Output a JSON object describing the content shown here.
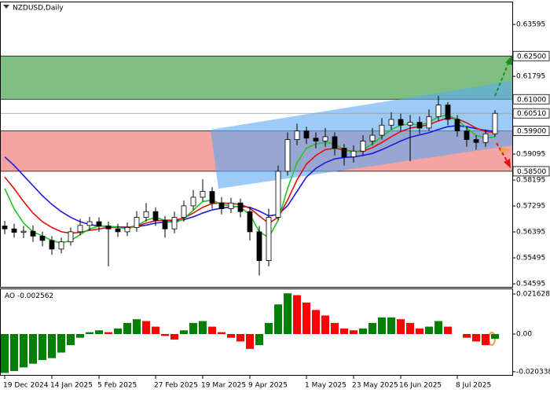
{
  "chart_data": {
    "type": "candlestick",
    "title": "NZDUSD,Daily",
    "categories": [
      "19 Dec 2024",
      null,
      null,
      null,
      null,
      "14 Jan 2025",
      null,
      null,
      null,
      null,
      "5 Feb 2025",
      null,
      null,
      null,
      null,
      null,
      "27 Feb 2025",
      null,
      null,
      null,
      null,
      "19 Mar 2025",
      null,
      null,
      null,
      null,
      "9 Apr 2025",
      null,
      null,
      null,
      null,
      null,
      "1 May 2025",
      null,
      null,
      null,
      null,
      "23 May 2025",
      null,
      null,
      null,
      null,
      "16 Jun 2025",
      null,
      null,
      null,
      null,
      null,
      "8 Jul 2025",
      null,
      null,
      null,
      null
    ],
    "open": [
      0.566,
      0.565,
      0.5638,
      0.5642,
      0.5625,
      0.561,
      0.558,
      0.5605,
      0.564,
      0.5662,
      0.5675,
      0.566,
      0.565,
      0.564,
      0.5655,
      0.569,
      0.571,
      0.568,
      0.565,
      0.569,
      0.573,
      0.576,
      0.578,
      0.574,
      0.572,
      0.574,
      0.571,
      0.564,
      0.554,
      0.569,
      0.585,
      0.596,
      0.599,
      0.5965,
      0.5955,
      0.597,
      0.593,
      0.59,
      0.592,
      0.5955,
      0.5975,
      0.601,
      0.603,
      0.601,
      0.602,
      0.6,
      0.604,
      0.608,
      0.603,
      0.599,
      0.596,
      0.595,
      0.598
    ],
    "high": [
      0.5678,
      0.5668,
      0.566,
      0.5662,
      0.564,
      0.5625,
      0.562,
      0.5655,
      0.5685,
      0.5692,
      0.569,
      0.5675,
      0.5668,
      0.5672,
      0.5712,
      0.574,
      0.5725,
      0.5695,
      0.571,
      0.5748,
      0.5785,
      0.5822,
      0.5795,
      0.576,
      0.5758,
      0.5755,
      0.5725,
      0.566,
      0.572,
      0.587,
      0.5985,
      0.6015,
      0.6005,
      0.5985,
      0.6,
      0.5985,
      0.5945,
      0.594,
      0.5975,
      0.6,
      0.6035,
      0.6055,
      0.605,
      0.6045,
      0.604,
      0.6065,
      0.6112,
      0.609,
      0.6045,
      0.6005,
      0.5975,
      0.5995,
      0.6062
    ],
    "low": [
      0.5632,
      0.562,
      0.5618,
      0.5605,
      0.559,
      0.556,
      0.5565,
      0.5592,
      0.5628,
      0.5645,
      0.564,
      0.552,
      0.5622,
      0.5625,
      0.564,
      0.5675,
      0.566,
      0.562,
      0.5635,
      0.5675,
      0.5715,
      0.5745,
      0.572,
      0.57,
      0.5705,
      0.569,
      0.561,
      0.5488,
      0.552,
      0.568,
      0.5835,
      0.594,
      0.5945,
      0.593,
      0.5935,
      0.5905,
      0.587,
      0.588,
      0.5905,
      0.594,
      0.596,
      0.5995,
      0.599,
      0.5885,
      0.598,
      0.599,
      0.6025,
      0.601,
      0.597,
      0.5935,
      0.5925,
      0.5935,
      0.597
    ],
    "close": [
      0.565,
      0.5638,
      0.5642,
      0.5625,
      0.561,
      0.558,
      0.5605,
      0.564,
      0.5662,
      0.5675,
      0.566,
      0.565,
      0.564,
      0.5655,
      0.569,
      0.571,
      0.568,
      0.565,
      0.569,
      0.573,
      0.576,
      0.578,
      0.574,
      0.572,
      0.574,
      0.571,
      0.564,
      0.554,
      0.569,
      0.585,
      0.596,
      0.599,
      0.5965,
      0.5955,
      0.597,
      0.593,
      0.59,
      0.592,
      0.5955,
      0.5975,
      0.601,
      0.603,
      0.601,
      0.602,
      0.6,
      0.604,
      0.608,
      0.603,
      0.599,
      0.596,
      0.595,
      0.598,
      0.6051
    ],
    "up_color": "#ffffff",
    "down_color": "#000000",
    "series": [
      {
        "color": "#1a1adb",
        "values": [
          0.59,
          0.587,
          0.5835,
          0.58,
          0.5765,
          0.5735,
          0.571,
          0.569,
          0.5675,
          0.5665,
          0.566,
          0.5658,
          0.5657,
          0.5656,
          0.5658,
          0.5663,
          0.567,
          0.5674,
          0.5677,
          0.5682,
          0.5692,
          0.5705,
          0.5716,
          0.5722,
          0.5726,
          0.5728,
          0.5725,
          0.5712,
          0.5695,
          0.57,
          0.573,
          0.578,
          0.583,
          0.586,
          0.588,
          0.5893,
          0.5898,
          0.59,
          0.5905,
          0.5912,
          0.5925,
          0.594,
          0.5955,
          0.5968,
          0.5976,
          0.5984,
          0.5995,
          0.6005,
          0.6008,
          0.6005,
          0.5998,
          0.5992,
          0.5988
        ]
      },
      {
        "color": "#e01010",
        "values": [
          0.583,
          0.579,
          0.5745,
          0.5705,
          0.5675,
          0.5655,
          0.564,
          0.5635,
          0.5638,
          0.5645,
          0.565,
          0.5655,
          0.5655,
          0.5655,
          0.566,
          0.567,
          0.5678,
          0.568,
          0.568,
          0.5688,
          0.5705,
          0.5725,
          0.5738,
          0.574,
          0.5738,
          0.5735,
          0.5722,
          0.5695,
          0.567,
          0.569,
          0.575,
          0.582,
          0.5875,
          0.5905,
          0.5925,
          0.593,
          0.5925,
          0.5918,
          0.592,
          0.5932,
          0.595,
          0.597,
          0.5988,
          0.6,
          0.6005,
          0.6012,
          0.6025,
          0.6035,
          0.6032,
          0.6018,
          0.6,
          0.5988,
          0.5985
        ]
      },
      {
        "color": "#22c322",
        "values": [
          0.579,
          0.572,
          0.567,
          0.564,
          0.5625,
          0.561,
          0.56,
          0.561,
          0.563,
          0.565,
          0.566,
          0.566,
          0.5655,
          0.565,
          0.566,
          0.568,
          0.569,
          0.568,
          0.567,
          0.5685,
          0.5715,
          0.5745,
          0.575,
          0.5735,
          0.573,
          0.5725,
          0.57,
          0.564,
          0.562,
          0.568,
          0.579,
          0.588,
          0.593,
          0.5945,
          0.595,
          0.5945,
          0.5925,
          0.5915,
          0.5925,
          0.5945,
          0.597,
          0.5995,
          0.601,
          0.6015,
          0.601,
          0.602,
          0.604,
          0.6045,
          0.603,
          0.6,
          0.5975,
          0.5965,
          0.597
        ]
      }
    ],
    "ylim": [
      0.5446,
      0.6439
    ],
    "yticks": [
      0.63595,
      0.61795,
      0.59095,
      0.58195,
      0.57295,
      0.56395,
      0.55495,
      0.54595
    ],
    "zones": [
      {
        "color": "#7fbf82",
        "top": {
          "value": 0.625,
          "label": "0.62500"
        },
        "bottom": {
          "value": 0.61,
          "label": "0.61000"
        }
      },
      {
        "color": "#f5a3a3",
        "top": {
          "value": 0.599,
          "label": "0.59900"
        },
        "bottom": {
          "value": 0.585,
          "label": "0.58500"
        }
      }
    ],
    "last_price": {
      "value": 0.6051,
      "label": "0.60510"
    },
    "indicator": {
      "type": "bar",
      "name": "AO",
      "values": [
        -0.021,
        -0.02,
        -0.018,
        -0.016,
        -0.014,
        -0.013,
        -0.01,
        -0.006,
        -0.002,
        0.001,
        0.002,
        0.001,
        0.003,
        0.006,
        0.008,
        0.007,
        0.004,
        -0.001,
        -0.003,
        0.002,
        0.006,
        0.007,
        0.004,
        0.001,
        -0.002,
        -0.004,
        -0.008,
        -0.006,
        0.006,
        0.016,
        0.022,
        0.021,
        0.017,
        0.013,
        0.01,
        0.006,
        0.003,
        0.002,
        0.003,
        0.006,
        0.009,
        0.009,
        0.008,
        0.006,
        0.003,
        0.004,
        0.007,
        0.004,
        0,
        -0.002,
        -0.004,
        -0.006,
        -0.002562
      ],
      "up_color": "#008000",
      "down_color": "#ff0000",
      "ylim": [
        -0.0225,
        0.0242
      ],
      "yticks": [
        0.021628,
        {
          "value": 0,
          "label": "0.00"
        },
        -0.020338
      ]
    }
  }
}
